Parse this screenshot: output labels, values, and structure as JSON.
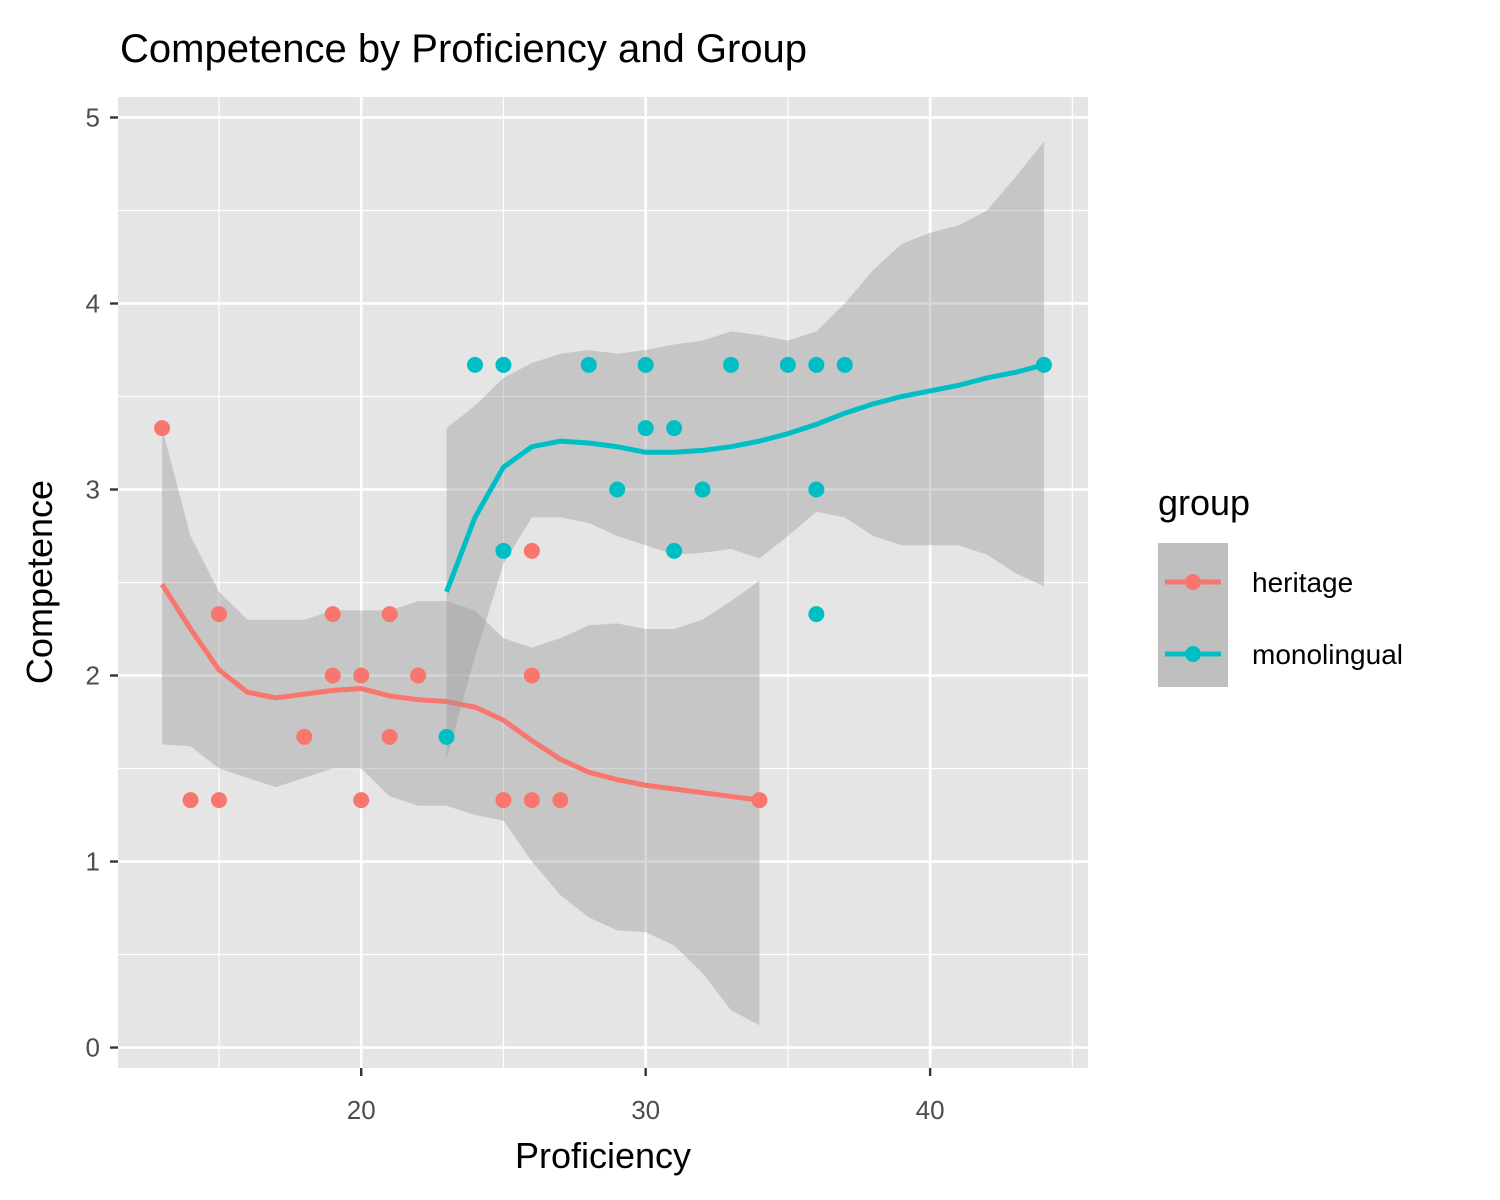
{
  "chart_data": {
    "type": "scatter",
    "title": "Competence by Proficiency and Group",
    "x_label": "Proficiency",
    "y_label": "Competence",
    "legend_title": "group",
    "xlim": [
      11.45,
      45.55
    ],
    "ylim": [
      -0.11,
      5.11
    ],
    "xticks": [
      20,
      30,
      40
    ],
    "yticks": [
      0,
      1,
      2,
      3,
      4,
      5
    ],
    "grid": true,
    "minor_grid": true,
    "legend": "right",
    "series": [
      {
        "name": "heritage",
        "color": "#F8766D",
        "x": [
          13,
          14,
          15,
          15,
          18,
          19,
          19,
          20,
          20,
          21,
          21,
          22,
          25,
          26,
          26,
          26,
          27,
          34
        ],
        "values": [
          3.33,
          1.33,
          1.33,
          2.33,
          1.67,
          2.33,
          2,
          2,
          1.33,
          2.33,
          1.67,
          2,
          1.33,
          2.67,
          2,
          1.33,
          1.33,
          1.33
        ],
        "smooth": {
          "x": [
            13,
            14,
            15,
            16,
            17,
            18,
            19,
            20,
            21,
            22,
            23,
            24,
            25,
            26,
            27,
            28,
            29,
            30,
            31,
            32,
            33,
            34
          ],
          "values": [
            2.49,
            2.25,
            2.03,
            1.91,
            1.88,
            1.9,
            1.92,
            1.93,
            1.89,
            1.87,
            1.86,
            1.83,
            1.76,
            1.65,
            1.55,
            1.48,
            1.44,
            1.41,
            1.39,
            1.37,
            1.35,
            1.33
          ],
          "lower": [
            1.63,
            1.62,
            1.5,
            1.45,
            1.4,
            1.45,
            1.5,
            1.5,
            1.35,
            1.3,
            1.3,
            1.25,
            1.22,
            1.0,
            0.82,
            0.7,
            0.63,
            0.62,
            0.55,
            0.4,
            0.2,
            0.12
          ],
          "upper": [
            3.33,
            2.75,
            2.45,
            2.3,
            2.3,
            2.3,
            2.35,
            2.35,
            2.35,
            2.4,
            2.4,
            2.35,
            2.2,
            2.15,
            2.2,
            2.27,
            2.28,
            2.25,
            2.25,
            2.3,
            2.4,
            2.51
          ]
        }
      },
      {
        "name": "monolingual",
        "color": "#00BFC4",
        "x": [
          23,
          24,
          25,
          25,
          28,
          29,
          30,
          30,
          31,
          31,
          32,
          33,
          35,
          36,
          36,
          36,
          37,
          44
        ],
        "values": [
          1.67,
          3.67,
          3.67,
          2.67,
          3.67,
          3,
          3.67,
          3.33,
          3.33,
          2.67,
          3,
          3.67,
          3.67,
          3.67,
          3,
          2.33,
          3.67,
          3.67
        ],
        "smooth": {
          "x": [
            23,
            24,
            25,
            26,
            27,
            28,
            29,
            30,
            31,
            32,
            33,
            34,
            35,
            36,
            37,
            38,
            39,
            40,
            41,
            42,
            43,
            44
          ],
          "values": [
            2.45,
            2.85,
            3.12,
            3.23,
            3.26,
            3.25,
            3.23,
            3.2,
            3.2,
            3.21,
            3.23,
            3.26,
            3.3,
            3.35,
            3.41,
            3.46,
            3.5,
            3.53,
            3.56,
            3.6,
            3.63,
            3.67
          ],
          "lower": [
            1.55,
            2.1,
            2.6,
            2.85,
            2.85,
            2.82,
            2.75,
            2.7,
            2.65,
            2.66,
            2.68,
            2.63,
            2.75,
            2.88,
            2.85,
            2.75,
            2.7,
            2.7,
            2.7,
            2.65,
            2.55,
            2.48
          ],
          "upper": [
            3.33,
            3.45,
            3.6,
            3.68,
            3.73,
            3.75,
            3.73,
            3.75,
            3.78,
            3.8,
            3.85,
            3.83,
            3.8,
            3.85,
            4.0,
            4.18,
            4.32,
            4.38,
            4.42,
            4.5,
            4.68,
            4.87
          ]
        }
      }
    ]
  }
}
